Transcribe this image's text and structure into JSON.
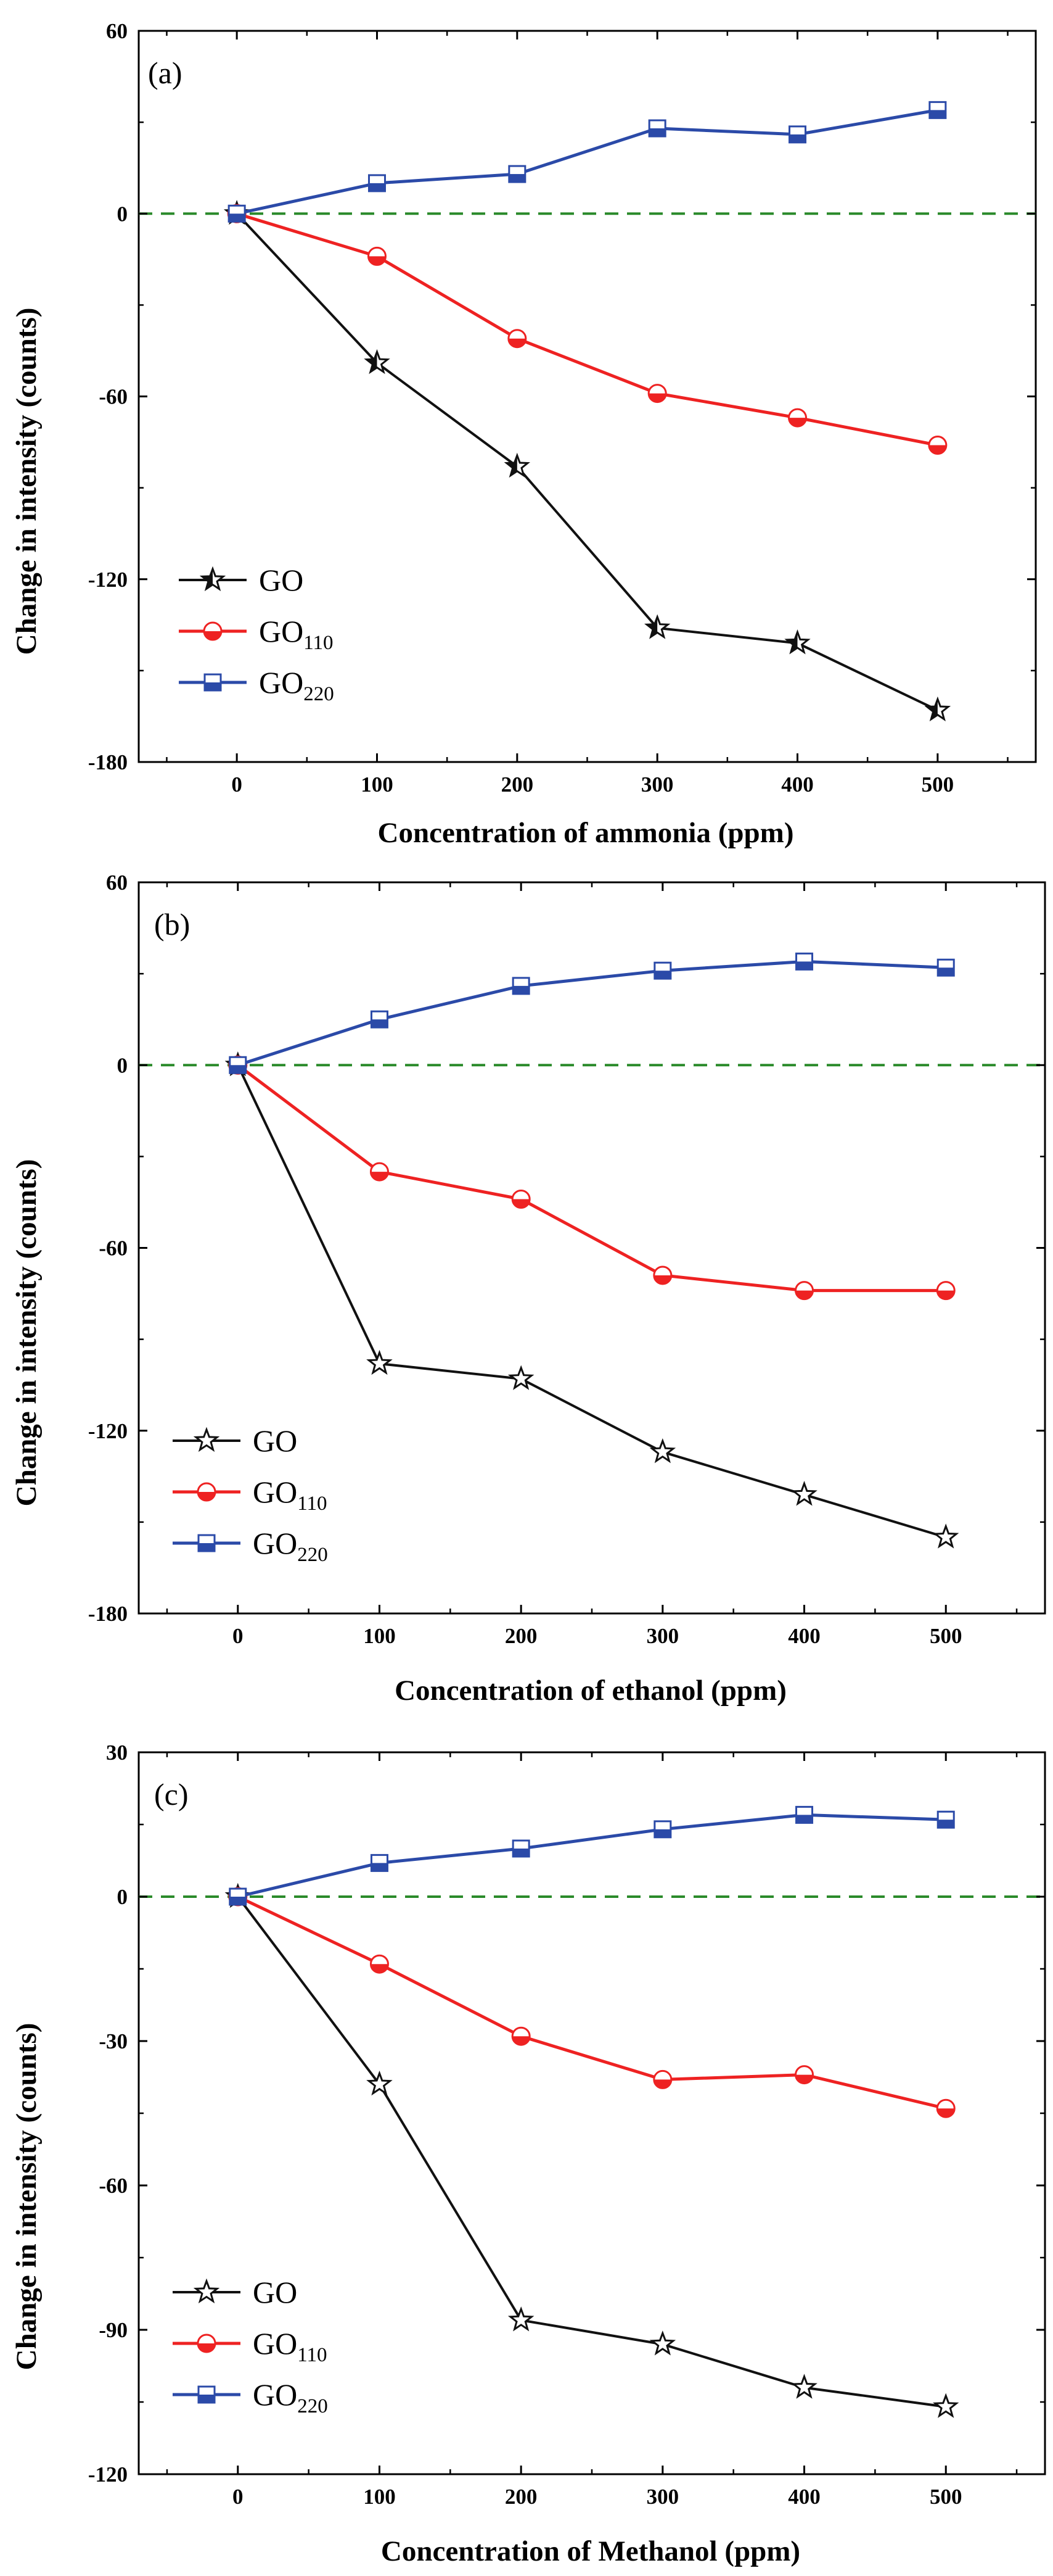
{
  "colors": {
    "GO": "#111111",
    "GO110": "#ee2222",
    "GO220": "#2b4aa8",
    "zero_line": "#2a8a2a"
  },
  "chart_data": [
    {
      "type": "line",
      "panel_label": "(a)",
      "xlabel": "Concentration of ammonia (ppm)",
      "ylabel": "Change in intensity (counts)",
      "xlim": [
        -70,
        570
      ],
      "ylim": [
        -180,
        60
      ],
      "x_ticks": [
        0,
        100,
        200,
        300,
        400,
        500
      ],
      "y_ticks": [
        -180,
        -120,
        -60,
        0,
        60
      ],
      "x": [
        0,
        100,
        200,
        300,
        400,
        500
      ],
      "reference_line": 0,
      "legend_position": "lower-left",
      "series": [
        {
          "key": "GO",
          "name": "GO",
          "sub": "",
          "marker": "star",
          "fill": "half",
          "values": [
            0,
            -49,
            -83,
            -136,
            -141,
            -163
          ]
        },
        {
          "key": "GO110",
          "name": "GO",
          "sub": "110",
          "marker": "circle",
          "fill": "half",
          "values": [
            0,
            -14,
            -41,
            -59,
            -67,
            -76
          ]
        },
        {
          "key": "GO220",
          "name": "GO",
          "sub": "220",
          "marker": "square",
          "fill": "half",
          "values": [
            0,
            10,
            13,
            28,
            26,
            34
          ]
        }
      ]
    },
    {
      "type": "line",
      "panel_label": "(b)",
      "xlabel": "Concentration of ethanol (ppm)",
      "ylabel": "Change in intensity (counts)",
      "xlim": [
        -70,
        570
      ],
      "ylim": [
        -180,
        60
      ],
      "x_ticks": [
        0,
        100,
        200,
        300,
        400,
        500
      ],
      "y_ticks": [
        -180,
        -120,
        -60,
        0,
        60
      ],
      "x": [
        0,
        100,
        200,
        300,
        400,
        500
      ],
      "reference_line": 0,
      "legend_position": "lower-left",
      "series": [
        {
          "key": "GO",
          "name": "GO",
          "sub": "",
          "marker": "star",
          "fill": "none",
          "values": [
            0,
            -98,
            -103,
            -127,
            -141,
            -155
          ]
        },
        {
          "key": "GO110",
          "name": "GO",
          "sub": "110",
          "marker": "circle",
          "fill": "half",
          "values": [
            0,
            -35,
            -44,
            -69,
            -74,
            -74
          ]
        },
        {
          "key": "GO220",
          "name": "GO",
          "sub": "220",
          "marker": "square",
          "fill": "half",
          "values": [
            0,
            15,
            26,
            31,
            34,
            32
          ]
        }
      ]
    },
    {
      "type": "line",
      "panel_label": "(c)",
      "xlabel": "Concentration of Methanol (ppm)",
      "ylabel": "Change in intensity (counts)",
      "xlim": [
        -70,
        570
      ],
      "ylim": [
        -120,
        30
      ],
      "x_ticks": [
        0,
        100,
        200,
        300,
        400,
        500
      ],
      "y_ticks": [
        -120,
        -90,
        -60,
        -30,
        0,
        30
      ],
      "x": [
        0,
        100,
        200,
        300,
        400,
        500
      ],
      "reference_line": 0,
      "legend_position": "lower-left",
      "series": [
        {
          "key": "GO",
          "name": "GO",
          "sub": "",
          "marker": "star",
          "fill": "none",
          "values": [
            0,
            -39,
            -88,
            -93,
            -102,
            -106
          ]
        },
        {
          "key": "GO110",
          "name": "GO",
          "sub": "110",
          "marker": "circle",
          "fill": "half",
          "values": [
            0,
            -14,
            -29,
            -38,
            -37,
            -44
          ]
        },
        {
          "key": "GO220",
          "name": "GO",
          "sub": "220",
          "marker": "square",
          "fill": "half",
          "values": [
            0,
            7,
            10,
            14,
            17,
            16
          ]
        }
      ]
    }
  ]
}
